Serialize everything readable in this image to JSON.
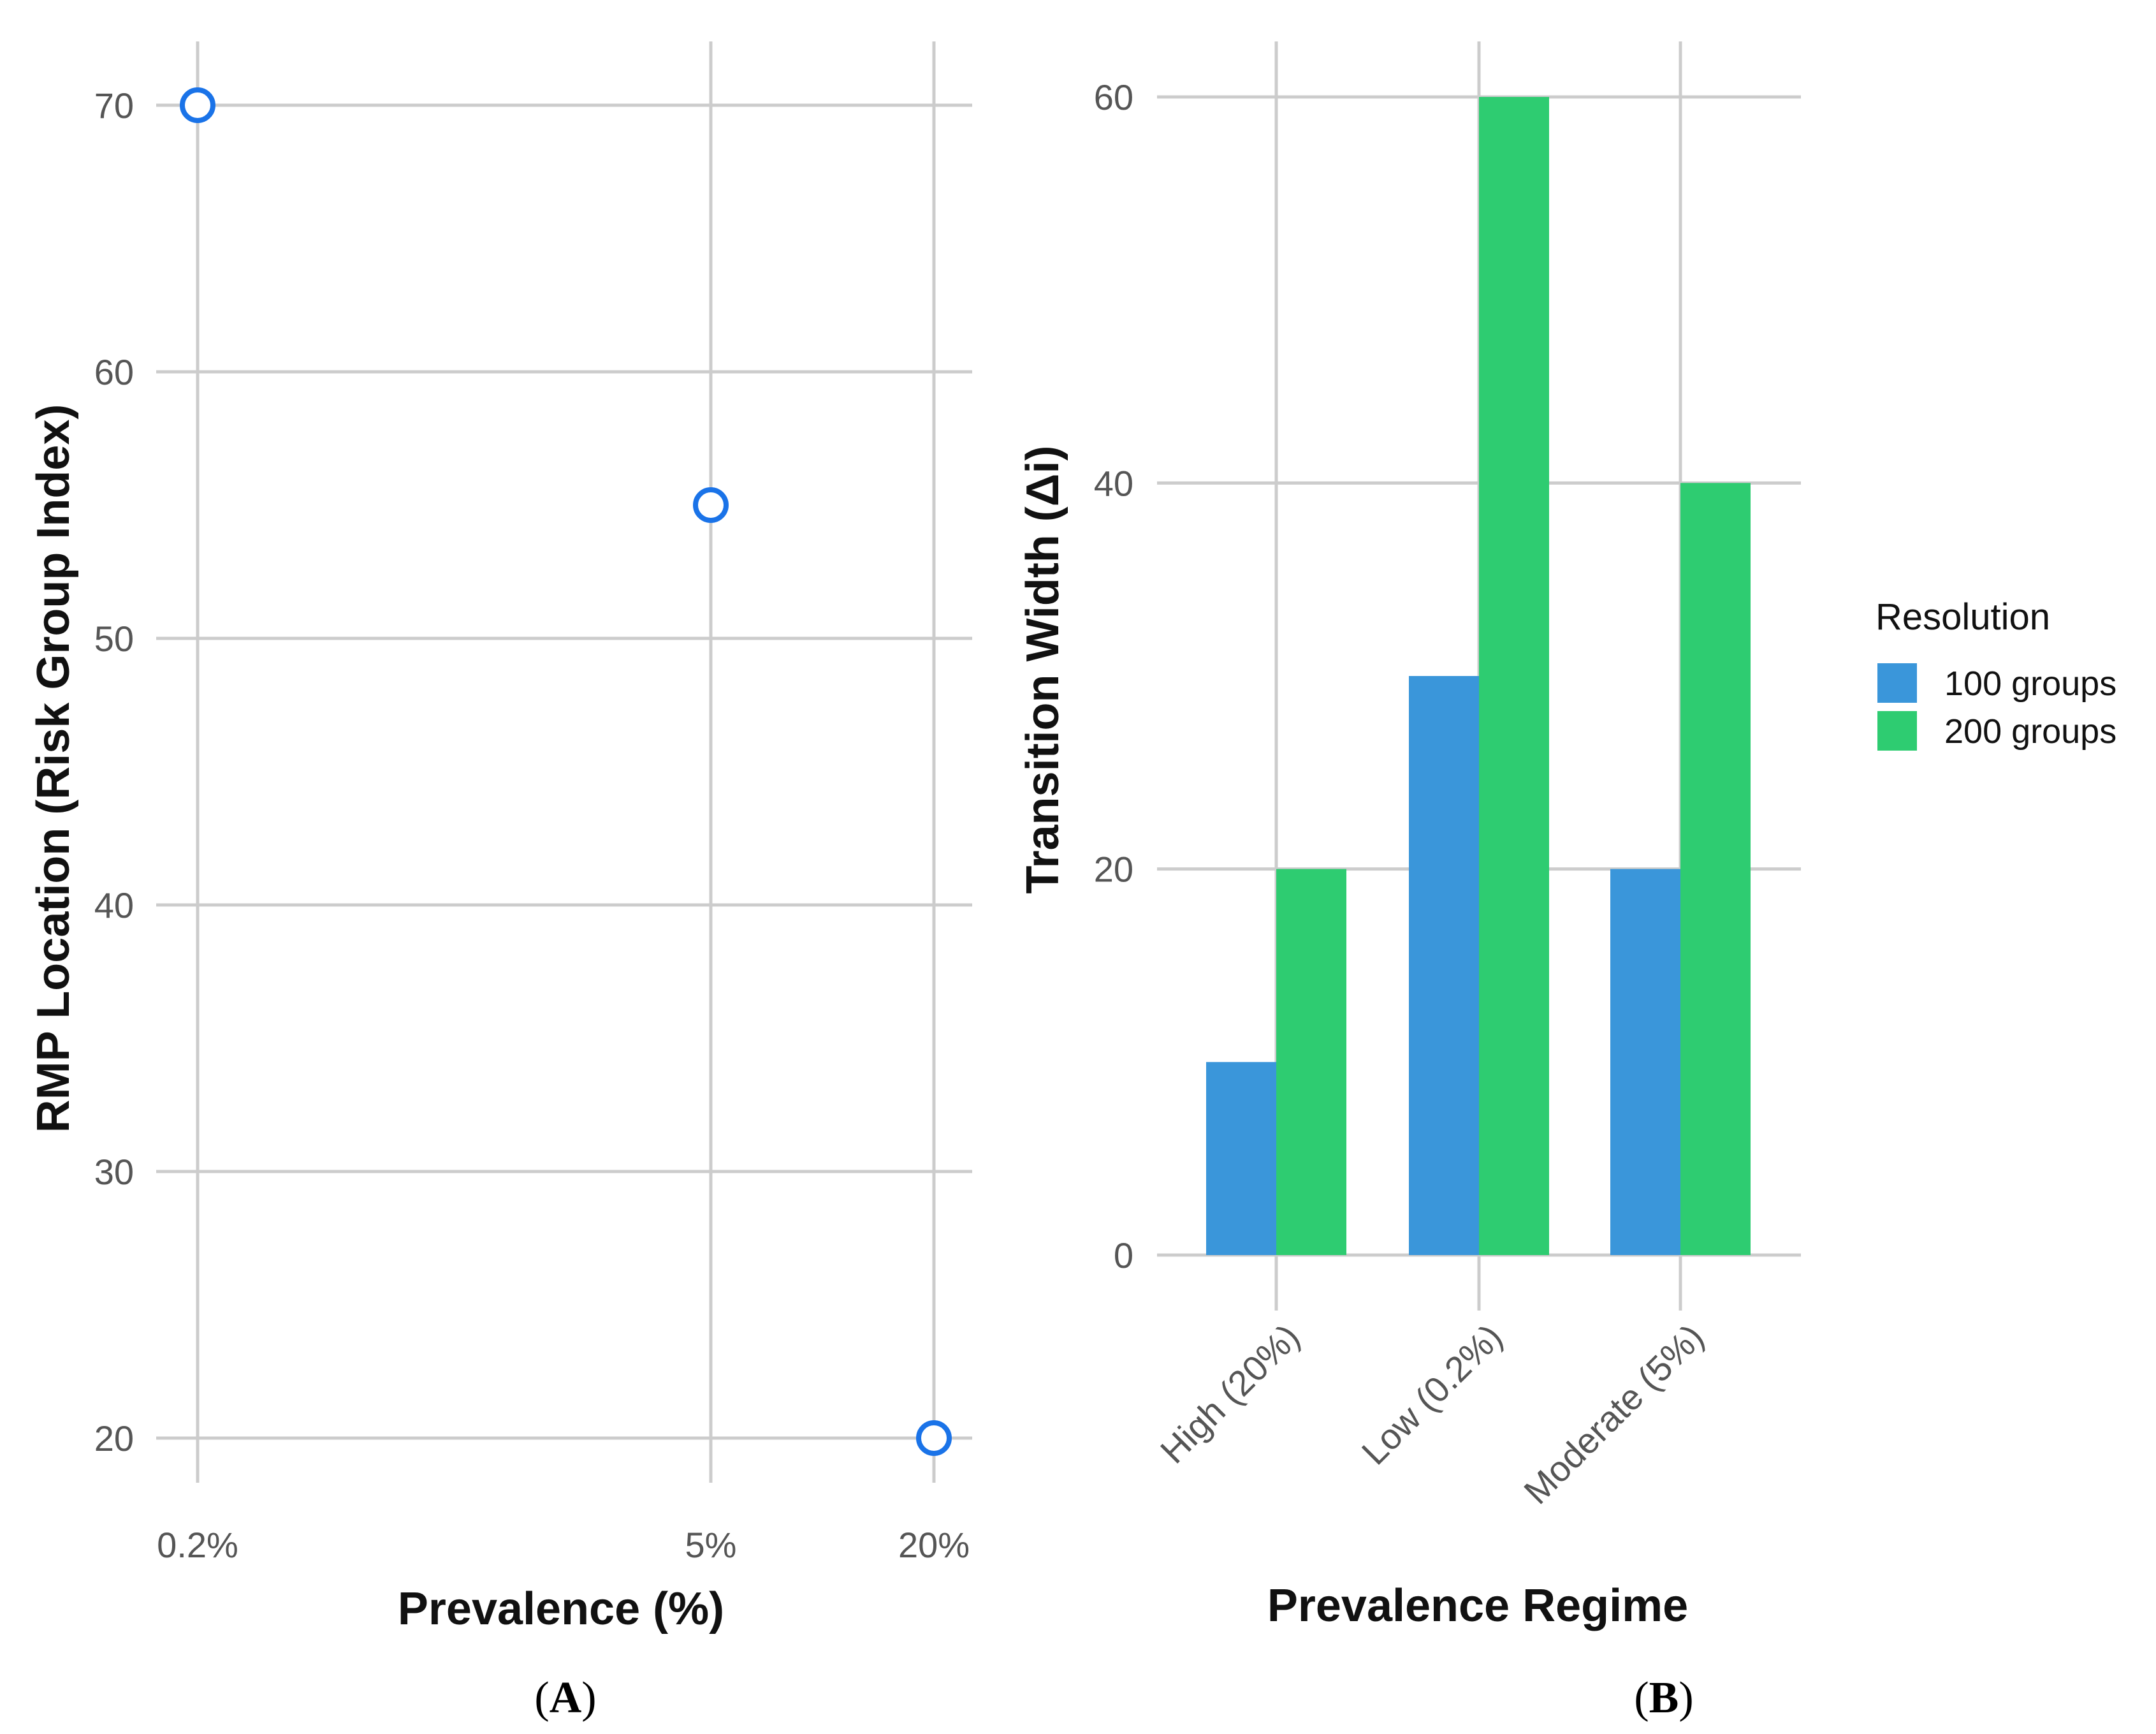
{
  "chart_data": [
    {
      "type": "scatter",
      "panel_label": "A",
      "xlabel": "Prevalence (%)",
      "ylabel": "RMP Location (Risk Group Index)",
      "x_ticks": [
        "0.2%",
        "5%",
        "20%"
      ],
      "y_ticks": [
        20,
        30,
        40,
        50,
        60,
        70
      ],
      "ylim": [
        18,
        72
      ],
      "points": [
        {
          "x": 0.2,
          "label": "0.2%",
          "y": 70
        },
        {
          "x": 5,
          "label": "5%",
          "y": 55
        },
        {
          "x": 20,
          "label": "20%",
          "y": 20
        }
      ],
      "marker_color": "#1a73e8"
    },
    {
      "type": "bar",
      "panel_label": "B",
      "xlabel": "Prevalence Regime",
      "ylabel": "Transition Width (Δi)",
      "categories": [
        "High (20%)",
        "Low (0.2%)",
        "Moderate (5%)"
      ],
      "y_ticks": [
        0,
        20,
        40,
        60
      ],
      "ylim": [
        0,
        62
      ],
      "series": [
        {
          "name": "100 groups",
          "color": "#3a96da",
          "values": [
            10,
            30,
            20
          ]
        },
        {
          "name": "200 groups",
          "color": "#2ecc71",
          "values": [
            20,
            60,
            40
          ]
        }
      ],
      "legend": {
        "title": "Resolution",
        "position": "right"
      }
    }
  ]
}
